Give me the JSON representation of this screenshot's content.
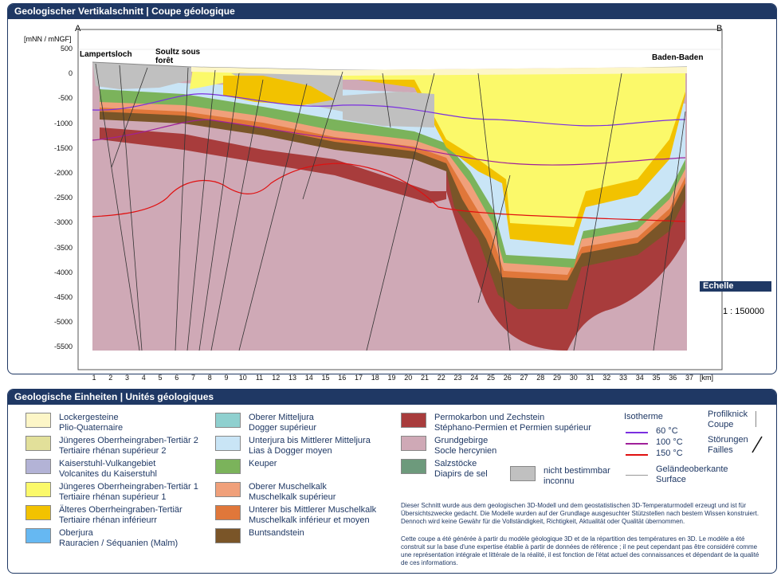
{
  "section": {
    "title": "Geologischer Vertikalschnitt | Coupe géologique",
    "label_a": "A",
    "label_b": "B",
    "y_unit": "[mNN / mNGF]",
    "x_unit": "[km]",
    "y_ticks": [
      "500",
      "0",
      "-500",
      "-1000",
      "-1500",
      "-2000",
      "-2500",
      "-3000",
      "-3500",
      "-4000",
      "-4500",
      "-5000",
      "-5500"
    ],
    "x_ticks": [
      "1",
      "2",
      "3",
      "4",
      "5",
      "6",
      "7",
      "8",
      "9",
      "10",
      "11",
      "12",
      "13",
      "14",
      "15",
      "16",
      "17",
      "18",
      "19",
      "20",
      "21",
      "22",
      "23",
      "24",
      "25",
      "26",
      "27",
      "28",
      "29",
      "30",
      "31",
      "32",
      "33",
      "34",
      "35",
      "36",
      "37"
    ],
    "places": {
      "lampertsloch": "Lampertsloch",
      "soultz": "Soultz sous forêt",
      "baden": "Baden-Baden"
    },
    "scale_label": "Echelle",
    "scale_value": "1 : 150000"
  },
  "legend": {
    "title": "Geologische Einheiten | Unités géologiques",
    "col1": [
      {
        "color": "#fdf6c7",
        "de": "Lockergesteine",
        "fr": "Plio-Quaternaire"
      },
      {
        "color": "#e2e09a",
        "de": "Jüngeres Oberrheingraben-Tertiär 2",
        "fr": "Tertiaire rhénan supérieur 2"
      },
      {
        "color": "#b3b3d6",
        "de": "Kaiserstuhl-Vulkangebiet",
        "fr": "Volcanites du Kaiserstuhl"
      },
      {
        "color": "#fbf96a",
        "de": "Jüngeres Oberrheingraben-Tertiär 1",
        "fr": "Tertiaire rhénan supérieur 1"
      },
      {
        "color": "#f2c200",
        "de": "Älteres Oberrheingraben-Tertiär",
        "fr": "Tertiaire rhénan inférieurr"
      },
      {
        "color": "#66b8f2",
        "de": "Oberjura",
        "fr": "Rauracien / Séquanien (Malm)"
      }
    ],
    "col2": [
      {
        "color": "#8fd0cf",
        "de": "Oberer Mitteljura",
        "fr": "Dogger supérieur"
      },
      {
        "color": "#c9e5f6",
        "de": "Unterjura bis Mittlerer Mitteljura",
        "fr": "Lias à Dogger moyen"
      },
      {
        "color": "#7bb35b",
        "de": "Keuper",
        "fr": ""
      },
      {
        "color": "#f0a07a",
        "de": "Oberer Muschelkalk",
        "fr": "Muschelkalk supérieur"
      },
      {
        "color": "#e0773a",
        "de": "Unterer bis Mittlerer Muschelkalk",
        "fr": "Muschelkalk inférieur et moyen"
      },
      {
        "color": "#7a5528",
        "de": "Buntsandstein",
        "fr": ""
      }
    ],
    "col3": [
      {
        "color": "#a83c3c",
        "de": "Permokarbon und Zechstein",
        "fr": "Stéphano-Permien et Permien supérieur"
      },
      {
        "color": "#cfa9b6",
        "de": "Grundgebirge",
        "fr": "Socle hercynien"
      },
      {
        "color": "#6d9a7c",
        "de": "Salzstöcke",
        "fr": "Diapirs de sel"
      }
    ],
    "unknown": {
      "color": "#c0c0c0",
      "de": "nicht bestimmbar",
      "fr": "inconnu"
    },
    "isotherm_title": "Isotherme",
    "isotherms": [
      {
        "color": "#7a2fe0",
        "label": "60 °C"
      },
      {
        "color": "#a0209a",
        "label": "100 °C"
      },
      {
        "color": "#e01010",
        "label": "150 °C"
      }
    ],
    "profilknick_de": "Profilknick",
    "profilknick_fr": "Coupe",
    "faults_de": "Störungen",
    "faults_fr": "Failles",
    "surface_de": "Geländeoberkante",
    "surface_fr": "Surface",
    "disclaimer_de": "Dieser Schnitt wurde aus dem geologischen 3D-Modell und dem geostatistischen 3D-Temperaturmodell erzeugt und ist für Übersichtszwecke gedacht. Die Modelle wurden auf der Grundlage ausgesuchter Stützstellen nach bestem Wissen konstruiert. Dennoch wird keine Gewähr für die Vollständigkeit, Richtigkeit, Aktualität oder Qualität übernommen.",
    "disclaimer_fr": "Cette coupe a été générée à partir du modèle géologique 3D et de la répartition des températures en 3D. Le modèle a été construit sur la base d'une expertise établie à partir de données de référence ; il ne peut cependant pas être considéré comme une représentation intégrale et littérale de la réalité, il est fonction de l'état actuel des connaissances et dépendant de la qualité de ces informations."
  }
}
